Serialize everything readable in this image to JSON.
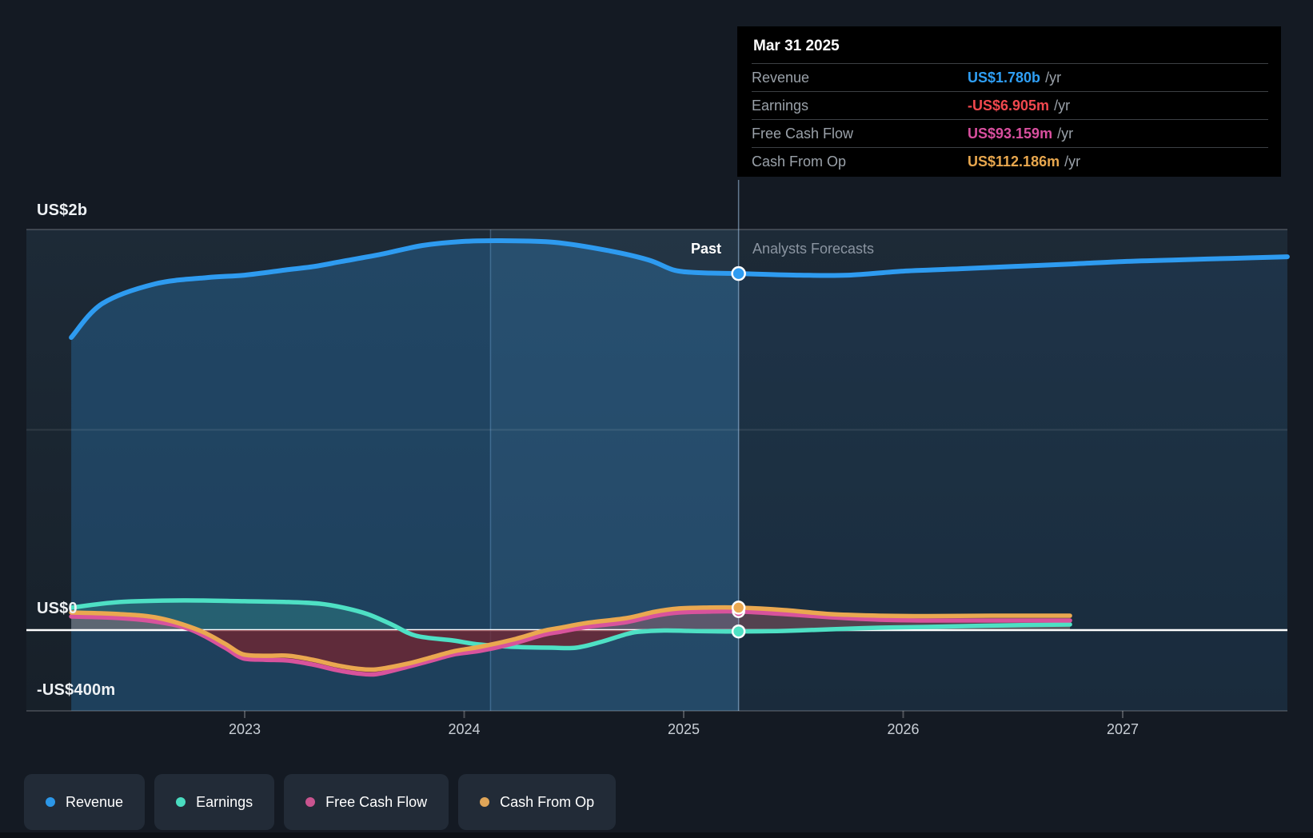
{
  "labels": {
    "past": "Past",
    "forecast": "Analysts Forecasts"
  },
  "y_axis": [
    "US$2b",
    "US$0",
    "-US$400m"
  ],
  "x_axis": [
    "2023",
    "2024",
    "2025",
    "2026",
    "2027"
  ],
  "tooltip": {
    "date": "Mar 31 2025",
    "rows": [
      {
        "label": "Revenue",
        "value": "US$1.780b",
        "suffix": "/yr",
        "color": "#2f9ff5"
      },
      {
        "label": "Earnings",
        "value": "-US$6.905m",
        "suffix": "/yr",
        "color": "#f0484e"
      },
      {
        "label": "Free Cash Flow",
        "value": "US$93.159m",
        "suffix": "/yr",
        "color": "#d94f9f"
      },
      {
        "label": "Cash From Op",
        "value": "US$112.186m",
        "suffix": "/yr",
        "color": "#e8a74e"
      }
    ]
  },
  "legend": [
    {
      "label": "Revenue",
      "color": "#2c97e8"
    },
    {
      "label": "Earnings",
      "color": "#4adcc0"
    },
    {
      "label": "Free Cash Flow",
      "color": "#c9548f"
    },
    {
      "label": "Cash From Op",
      "color": "#dfa558"
    }
  ],
  "chart_data": {
    "type": "area",
    "x_unit": "year",
    "y_unit": "US$ millions",
    "xlim": [
      2022.2,
      2027.78
    ],
    "ylim": [
      -400,
      2000
    ],
    "gridlines": [
      2000,
      1000,
      0,
      -400
    ],
    "divider_x": 2025.25,
    "highlight_band": [
      2024.12,
      2025.25
    ],
    "legend_position": "bottom",
    "series": [
      {
        "name": "Revenue",
        "color": "#2e9bf0",
        "past": [
          [
            2022.21,
            1461
          ],
          [
            2022.35,
            1629
          ],
          [
            2022.59,
            1728
          ],
          [
            2022.83,
            1760
          ],
          [
            2023.0,
            1772
          ],
          [
            2023.2,
            1800
          ],
          [
            2023.32,
            1816
          ],
          [
            2023.44,
            1840
          ],
          [
            2023.62,
            1876
          ],
          [
            2023.81,
            1920
          ],
          [
            2023.99,
            1940
          ],
          [
            2024.17,
            1944
          ],
          [
            2024.41,
            1936
          ],
          [
            2024.65,
            1896
          ],
          [
            2024.84,
            1848
          ],
          [
            2024.96,
            1796
          ],
          [
            2025.08,
            1784
          ],
          [
            2025.25,
            1780
          ]
        ],
        "forecast": [
          [
            2025.25,
            1780
          ],
          [
            2025.53,
            1772
          ],
          [
            2025.75,
            1772
          ],
          [
            2026.0,
            1792
          ],
          [
            2026.26,
            1804
          ],
          [
            2026.51,
            1816
          ],
          [
            2026.77,
            1828
          ],
          [
            2027.0,
            1840
          ],
          [
            2027.24,
            1848
          ],
          [
            2027.5,
            1856
          ],
          [
            2027.75,
            1864
          ]
        ]
      },
      {
        "name": "Earnings",
        "color": "#4ee0c4",
        "past": [
          [
            2022.21,
            112
          ],
          [
            2022.43,
            140
          ],
          [
            2022.72,
            148
          ],
          [
            2023.0,
            144
          ],
          [
            2023.2,
            140
          ],
          [
            2023.34,
            132
          ],
          [
            2023.45,
            112
          ],
          [
            2023.56,
            80
          ],
          [
            2023.67,
            28
          ],
          [
            2023.78,
            -28
          ],
          [
            2023.95,
            -52
          ],
          [
            2024.07,
            -72
          ],
          [
            2024.23,
            -84
          ],
          [
            2024.4,
            -88
          ],
          [
            2024.51,
            -88
          ],
          [
            2024.62,
            -60
          ],
          [
            2024.74,
            -20
          ],
          [
            2024.8,
            -8
          ],
          [
            2024.91,
            -2
          ],
          [
            2025.02,
            -4
          ],
          [
            2025.13,
            -6
          ],
          [
            2025.25,
            -6.905
          ]
        ],
        "forecast": [
          [
            2025.25,
            -6.905
          ],
          [
            2025.46,
            -4
          ],
          [
            2025.67,
            4
          ],
          [
            2025.89,
            12
          ],
          [
            2026.11,
            16
          ],
          [
            2026.37,
            22
          ],
          [
            2026.76,
            28
          ]
        ]
      },
      {
        "name": "Free Cash Flow",
        "color": "#d8539c",
        "past": [
          [
            2022.21,
            68
          ],
          [
            2022.43,
            60
          ],
          [
            2022.61,
            40
          ],
          [
            2022.76,
            0
          ],
          [
            2022.91,
            -88
          ],
          [
            2022.99,
            -140
          ],
          [
            2023.09,
            -148
          ],
          [
            2023.2,
            -152
          ],
          [
            2023.31,
            -172
          ],
          [
            2023.42,
            -200
          ],
          [
            2023.51,
            -216
          ],
          [
            2023.6,
            -220
          ],
          [
            2023.74,
            -184
          ],
          [
            2023.85,
            -152
          ],
          [
            2023.96,
            -120
          ],
          [
            2024.07,
            -104
          ],
          [
            2024.22,
            -68
          ],
          [
            2024.36,
            -24
          ],
          [
            2024.44,
            -8
          ],
          [
            2024.56,
            16
          ],
          [
            2024.74,
            40
          ],
          [
            2024.87,
            72
          ],
          [
            2024.98,
            88
          ],
          [
            2025.09,
            92
          ],
          [
            2025.25,
            93.159
          ]
        ],
        "forecast": [
          [
            2025.25,
            93.159
          ],
          [
            2025.46,
            80
          ],
          [
            2025.67,
            64
          ],
          [
            2025.89,
            52
          ],
          [
            2026.11,
            48
          ],
          [
            2026.4,
            48
          ],
          [
            2026.76,
            48
          ]
        ]
      },
      {
        "name": "Cash From Op",
        "color": "#eaa850",
        "past": [
          [
            2022.21,
            88
          ],
          [
            2022.43,
            80
          ],
          [
            2022.61,
            60
          ],
          [
            2022.79,
            0
          ],
          [
            2022.91,
            -68
          ],
          [
            2022.99,
            -120
          ],
          [
            2023.09,
            -128
          ],
          [
            2023.2,
            -128
          ],
          [
            2023.31,
            -148
          ],
          [
            2023.42,
            -176
          ],
          [
            2023.51,
            -192
          ],
          [
            2023.6,
            -196
          ],
          [
            2023.74,
            -168
          ],
          [
            2023.85,
            -136
          ],
          [
            2023.96,
            -104
          ],
          [
            2024.07,
            -84
          ],
          [
            2024.22,
            -48
          ],
          [
            2024.36,
            -4
          ],
          [
            2024.44,
            12
          ],
          [
            2024.56,
            36
          ],
          [
            2024.74,
            60
          ],
          [
            2024.87,
            92
          ],
          [
            2024.98,
            108
          ],
          [
            2025.09,
            112
          ],
          [
            2025.25,
            112.186
          ]
        ],
        "forecast": [
          [
            2025.25,
            112.186
          ],
          [
            2025.46,
            100
          ],
          [
            2025.67,
            80
          ],
          [
            2025.89,
            72
          ],
          [
            2026.11,
            70
          ],
          [
            2026.4,
            72
          ],
          [
            2026.76,
            72
          ]
        ]
      }
    ]
  }
}
